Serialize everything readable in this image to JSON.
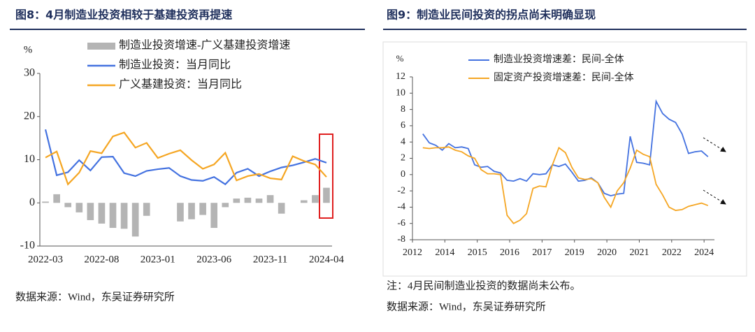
{
  "figures": [
    {
      "title": "图8：4月制造业投资相较于基建投资再提速",
      "source": "数据来源：Wind，东吴证券研究所"
    },
    {
      "title": "图9：制造业民间投资的拐点尚未明确显现",
      "note": "注：4月民间制造业投资的数据尚未公布。",
      "source": "数据来源：Wind，东吴证券研究所"
    }
  ],
  "chart_data": [
    {
      "type": "combo",
      "y_label": "%",
      "categories": [
        "2022-03",
        null,
        null,
        null,
        null,
        "2022-08",
        null,
        null,
        null,
        null,
        "2023-01",
        null,
        null,
        null,
        null,
        "2023-06",
        null,
        null,
        null,
        null,
        "2023-11",
        null,
        null,
        null,
        null,
        "2024-04"
      ],
      "series": [
        {
          "name": "制造业投资增速-广义基建投资增速",
          "type": "bar",
          "color": "#b4b4b4",
          "values": [
            0.3,
            2.0,
            -1.0,
            -2.2,
            -4.0,
            -4.8,
            -5.8,
            -6.0,
            -7.8,
            -3.0,
            0,
            0,
            -4.3,
            -3.8,
            -2.8,
            -5.8,
            -1.0,
            1.0,
            1.2,
            1.0,
            1.8,
            -2.5,
            0,
            0.6,
            1.8,
            3.5
          ]
        },
        {
          "name": "制造业投资：当月同比",
          "type": "line",
          "color": "#4472e0",
          "values": [
            17.0,
            6.4,
            7.1,
            9.9,
            7.5,
            10.6,
            10.7,
            6.9,
            6.2,
            7.4,
            7.8,
            8.1,
            6.2,
            5.3,
            5.1,
            6.0,
            4.3,
            7.0,
            7.9,
            6.2,
            7.3,
            8.2,
            8.7,
            9.4,
            10.2,
            9.3
          ]
        },
        {
          "name": "广义基建投资：当月同比",
          "type": "line",
          "color": "#f5a623",
          "values": [
            10.5,
            11.9,
            4.3,
            7.0,
            12.0,
            11.5,
            15.4,
            16.3,
            12.8,
            13.9,
            10.4,
            11.4,
            12.2,
            9.9,
            7.9,
            8.9,
            11.6,
            5.2,
            6.2,
            6.7,
            5.7,
            5.4,
            10.8,
            9.7,
            8.9,
            6.0
          ]
        }
      ],
      "ylim": [
        -10,
        30
      ],
      "yticks": [
        -10,
        0,
        10,
        20,
        30
      ]
    },
    {
      "type": "line",
      "y_label": "%",
      "x": [
        2013.2,
        2013.45,
        2013.7,
        2013.95,
        2014.2,
        2014.45,
        2014.7,
        2014.95,
        2015.2,
        2015.45,
        2015.7,
        2015.95,
        2016.2,
        2016.45,
        2016.7,
        2016.95,
        2017.2,
        2017.45,
        2017.7,
        2017.95,
        2018.2,
        2018.45,
        2018.7,
        2018.95,
        2019.2,
        2019.45,
        2019.7,
        2019.95,
        2020.2,
        2020.45,
        2020.7,
        2020.95,
        2021.2,
        2021.45,
        2021.7,
        2021.95,
        2022.2,
        2022.45,
        2022.7,
        2022.95,
        2023.2,
        2023.45,
        2023.7,
        2023.95,
        2024.2
      ],
      "series": [
        {
          "name": "制造业投资增速差：民间-全体",
          "color": "#4472e0",
          "values": [
            5.0,
            3.9,
            3.6,
            3.0,
            3.8,
            3.3,
            3.4,
            3.2,
            1.2,
            0.9,
            1.0,
            0.4,
            0.2,
            -0.7,
            -0.8,
            -0.5,
            -0.8,
            0.1,
            0.0,
            0.1,
            1.2,
            1.0,
            1.3,
            0.3,
            -0.8,
            -0.7,
            -0.4,
            -1.0,
            -2.3,
            -2.6,
            -2.4,
            -2.3,
            4.7,
            1.5,
            1.4,
            1.2,
            9.0,
            7.5,
            6.8,
            6.4,
            5.0,
            2.6,
            2.8,
            2.9,
            2.2
          ]
        },
        {
          "name": "固定资产投资增速差：民间-全体",
          "color": "#f5a623",
          "values": [
            3.3,
            3.2,
            3.3,
            3.3,
            3.4,
            3.0,
            2.8,
            2.3,
            2.0,
            0.6,
            0.1,
            0.1,
            0.0,
            -5.0,
            -6.0,
            -5.6,
            -4.8,
            -1.7,
            -1.4,
            -1.5,
            1.2,
            3.3,
            2.7,
            0.9,
            -0.4,
            -0.6,
            -0.5,
            -1.0,
            -2.8,
            -4.0,
            -2.0,
            -1.0,
            0.8,
            3.0,
            2.5,
            2.2,
            -1.2,
            -2.5,
            -4.0,
            -4.4,
            -4.3,
            -3.9,
            -3.7,
            -3.5,
            -3.8
          ]
        }
      ],
      "xlim": [
        2012.8,
        2024.45
      ],
      "xticks": [
        {
          "value": 2012.8,
          "label": "2012"
        },
        {
          "value": 2014.05,
          "label": "2014"
        },
        {
          "value": 2015.3,
          "label": "2015"
        },
        {
          "value": 2016.55,
          "label": "2016"
        },
        {
          "value": 2017.8,
          "label": "2017"
        },
        {
          "value": 2019.05,
          "label": "2019"
        },
        {
          "value": 2020.3,
          "label": "2020"
        },
        {
          "value": 2021.55,
          "label": "2021"
        },
        {
          "value": 2022.8,
          "label": "2022"
        },
        {
          "value": 2024.05,
          "label": "2024"
        }
      ],
      "ylim": [
        -8,
        12
      ],
      "yticks": [
        -8,
        -6,
        -4,
        -2,
        0,
        2,
        4,
        6,
        8,
        10,
        12
      ]
    }
  ]
}
